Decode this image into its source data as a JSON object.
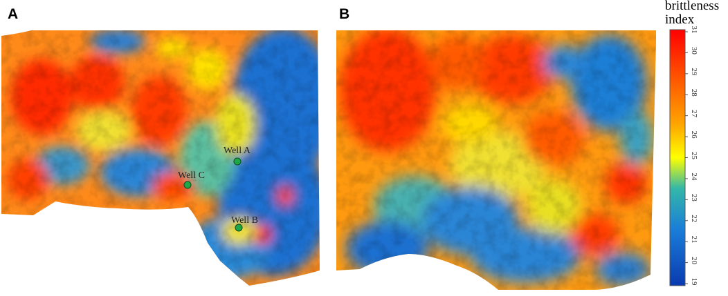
{
  "panels": [
    {
      "letter": "A"
    },
    {
      "letter": "B"
    }
  ],
  "wells": [
    {
      "name": "Well A"
    },
    {
      "name": "Well C"
    },
    {
      "name": "Well B"
    }
  ],
  "legend": {
    "title_line1": "brittleness",
    "title_line2": "index",
    "ticks": [
      "31",
      "30",
      "29",
      "28",
      "27",
      "26",
      "25",
      "24",
      "23",
      "22",
      "21",
      "20",
      "19"
    ],
    "colors": {
      "max": "#ff0000",
      "high": "#ff7f00",
      "mid": "#ffff00",
      "low_mid": "#34b7a8",
      "low": "#1060c8",
      "min": "#0a3ab0"
    }
  }
}
